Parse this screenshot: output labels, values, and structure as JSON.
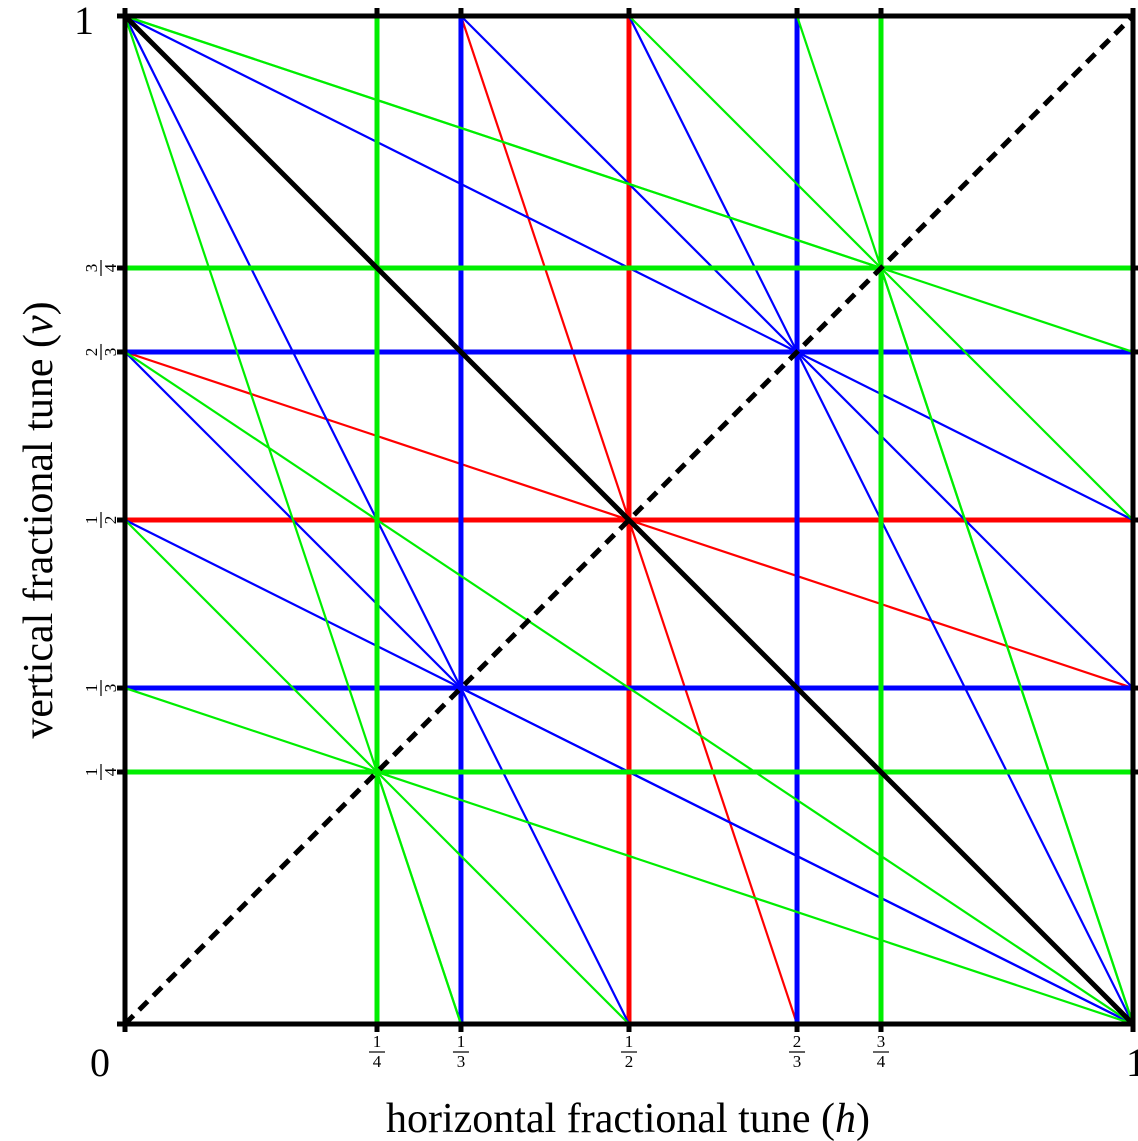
{
  "diagram": {
    "axis_x_label_text": "horizontal fractional tune (",
    "axis_x_label_var": "h",
    "axis_x_label_close": ")",
    "axis_y_label_text": "vertical fractional tune (",
    "axis_y_label_var": "v",
    "axis_y_label_close": ")",
    "x_end_labels": [
      "0",
      "1"
    ],
    "y_end_labels": [
      "1"
    ],
    "colors": {
      "order1": "#000000",
      "order2": "#ff0000",
      "order3": "#0000ff",
      "order4": "#00ee00"
    },
    "ticks": [
      {
        "value": 0.25,
        "num": "1",
        "den": "4",
        "color": "order4"
      },
      {
        "value": 0.3333,
        "num": "1",
        "den": "3",
        "color": "order3"
      },
      {
        "value": 0.5,
        "num": "1",
        "den": "2",
        "color": "order2"
      },
      {
        "value": 0.6667,
        "num": "2",
        "den": "3",
        "color": "order3"
      },
      {
        "value": 0.75,
        "num": "3",
        "den": "4",
        "color": "order4"
      }
    ]
  },
  "chart_data": {
    "type": "line",
    "xlim": [
      0,
      1
    ],
    "ylim": [
      0,
      1
    ],
    "resonance_lines": [
      {
        "color": "order1",
        "dashed": false,
        "pts": [
          [
            0,
            1
          ],
          [
            1,
            0
          ]
        ]
      },
      {
        "color": "order1",
        "dashed": true,
        "pts": [
          [
            0,
            0
          ],
          [
            1,
            1
          ]
        ]
      },
      {
        "color": "order2",
        "pts": [
          [
            0.5,
            0
          ],
          [
            0.5,
            1
          ]
        ]
      },
      {
        "color": "order2",
        "pts": [
          [
            0,
            0.5
          ],
          [
            1,
            0.5
          ]
        ]
      },
      {
        "color": "order2",
        "pts": [
          [
            0.3333,
            1
          ],
          [
            0.6667,
            0
          ]
        ]
      },
      {
        "color": "order2",
        "pts": [
          [
            0,
            0.6667
          ],
          [
            1,
            0.3333
          ]
        ]
      },
      {
        "color": "order3",
        "pts": [
          [
            0.3333,
            0
          ],
          [
            0.3333,
            1
          ]
        ]
      },
      {
        "color": "order3",
        "pts": [
          [
            0.6667,
            0
          ],
          [
            0.6667,
            1
          ]
        ]
      },
      {
        "color": "order3",
        "pts": [
          [
            0,
            0.3333
          ],
          [
            1,
            0.3333
          ]
        ]
      },
      {
        "color": "order3",
        "pts": [
          [
            0,
            0.6667
          ],
          [
            1,
            0.6667
          ]
        ]
      },
      {
        "color": "order3",
        "pts": [
          [
            0,
            1
          ],
          [
            0.3333,
            0.3333
          ]
        ]
      },
      {
        "color": "order3",
        "pts": [
          [
            0,
            1
          ],
          [
            0.6667,
            0.6667
          ]
        ]
      },
      {
        "color": "order3",
        "pts": [
          [
            0,
            0.6667
          ],
          [
            0.3333,
            0.3333
          ]
        ]
      },
      {
        "color": "order3",
        "pts": [
          [
            0,
            0.5
          ],
          [
            0.3333,
            0.3333
          ]
        ]
      },
      {
        "color": "order3",
        "pts": [
          [
            0.3333,
            0.3333
          ],
          [
            0.5,
            0
          ]
        ]
      },
      {
        "color": "order3",
        "pts": [
          [
            0.3333,
            0.3333
          ],
          [
            1,
            0
          ]
        ]
      },
      {
        "color": "order3",
        "pts": [
          [
            0.3333,
            1
          ],
          [
            0.6667,
            0.6667
          ]
        ]
      },
      {
        "color": "order3",
        "pts": [
          [
            0.5,
            1
          ],
          [
            0.6667,
            0.6667
          ]
        ]
      },
      {
        "color": "order3",
        "pts": [
          [
            0.6667,
            0.6667
          ],
          [
            1,
            0.5
          ]
        ]
      },
      {
        "color": "order3",
        "pts": [
          [
            0.6667,
            0.6667
          ],
          [
            1,
            0.3333
          ]
        ]
      },
      {
        "color": "order3",
        "pts": [
          [
            0.3333,
            0.3333
          ],
          [
            1,
            0
          ]
        ]
      },
      {
        "color": "order3",
        "pts": [
          [
            0.6667,
            0.6667
          ],
          [
            1,
            0
          ]
        ]
      },
      {
        "color": "order4",
        "pts": [
          [
            0.25,
            0
          ],
          [
            0.25,
            1
          ]
        ]
      },
      {
        "color": "order4",
        "pts": [
          [
            0.75,
            0
          ],
          [
            0.75,
            1
          ]
        ]
      },
      {
        "color": "order4",
        "pts": [
          [
            0,
            0.25
          ],
          [
            1,
            0.25
          ]
        ]
      },
      {
        "color": "order4",
        "pts": [
          [
            0,
            0.75
          ],
          [
            1,
            0.75
          ]
        ]
      },
      {
        "color": "order4",
        "pts": [
          [
            0,
            1
          ],
          [
            1,
            0.6667
          ]
        ]
      },
      {
        "color": "order4",
        "pts": [
          [
            0,
            1
          ],
          [
            0.75,
            0.75
          ]
        ]
      },
      {
        "color": "order4",
        "pts": [
          [
            0,
            1
          ],
          [
            0.3333,
            0
          ]
        ]
      },
      {
        "color": "order4",
        "pts": [
          [
            0.5,
            1
          ],
          [
            0.75,
            0.75
          ]
        ]
      },
      {
        "color": "order4",
        "pts": [
          [
            0.6667,
            1
          ],
          [
            1,
            0
          ]
        ]
      },
      {
        "color": "order4",
        "pts": [
          [
            0.75,
            0.75
          ],
          [
            1,
            0.5
          ]
        ]
      },
      {
        "color": "order4",
        "pts": [
          [
            0,
            0.5
          ],
          [
            0.25,
            0.25
          ]
        ]
      },
      {
        "color": "order4",
        "pts": [
          [
            0,
            0.3333
          ],
          [
            0.25,
            0.25
          ]
        ]
      },
      {
        "color": "order4",
        "pts": [
          [
            0.25,
            0.25
          ],
          [
            0.3333,
            0
          ]
        ]
      },
      {
        "color": "order4",
        "pts": [
          [
            0.25,
            0.25
          ],
          [
            0.5,
            0
          ]
        ]
      },
      {
        "color": "order4",
        "pts": [
          [
            0.25,
            0.25
          ],
          [
            1,
            0
          ]
        ]
      },
      {
        "color": "order4",
        "pts": [
          [
            0,
            0.6667
          ],
          [
            1,
            0
          ]
        ]
      },
      {
        "color": "order4",
        "pts": [
          [
            0.75,
            0.75
          ],
          [
            1,
            0
          ]
        ]
      }
    ]
  }
}
